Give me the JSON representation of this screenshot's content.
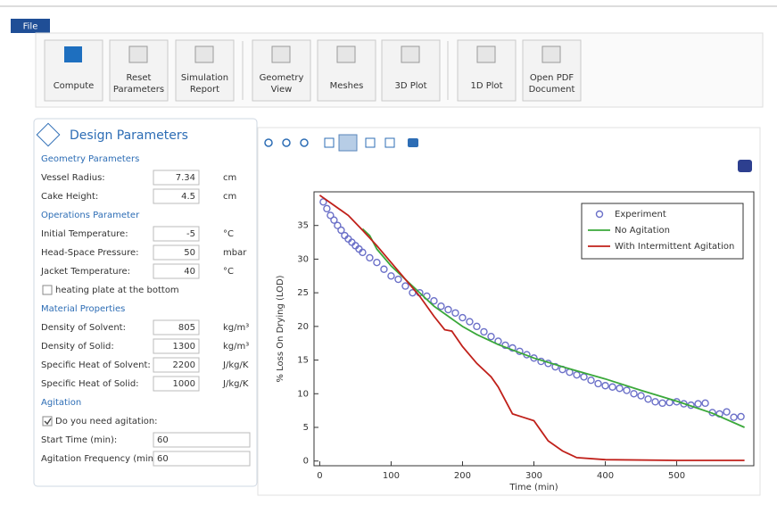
{
  "menu": {
    "file": "File"
  },
  "toolbar": {
    "buttons": [
      {
        "lines": [
          "Compute"
        ]
      },
      {
        "lines": [
          "Reset",
          "Parameters"
        ]
      },
      {
        "lines": [
          "Simulation",
          "Report"
        ]
      },
      {
        "lines": [
          "Geometry",
          "View"
        ]
      },
      {
        "lines": [
          "Meshes"
        ]
      },
      {
        "lines": [
          "3D Plot"
        ]
      },
      {
        "lines": [
          "1D Plot"
        ]
      },
      {
        "lines": [
          "Open PDF",
          "Document"
        ]
      }
    ]
  },
  "panel": {
    "title": "Design Parameters",
    "items": [
      {
        "kind": "heading",
        "text": "Geometry Parameters"
      },
      {
        "kind": "row",
        "label": "Vessel Radius:",
        "value": 7.34,
        "unit": "cm"
      },
      {
        "kind": "row",
        "label": "Cake Height:",
        "value": 4.5,
        "unit": "cm"
      },
      {
        "kind": "heading",
        "text": "Operations Parameter"
      },
      {
        "kind": "row",
        "label": "Initial Temperature:",
        "value": -5,
        "unit": "°C"
      },
      {
        "kind": "row",
        "label": "Head-Space Pressure:",
        "value": 50,
        "unit": "mbar"
      },
      {
        "kind": "row",
        "label": "Jacket Temperature:",
        "value": 40,
        "unit": "°C"
      },
      {
        "kind": "check",
        "label": "heating plate at the bottom",
        "checked": false
      },
      {
        "kind": "heading",
        "text": "Material Properties"
      },
      {
        "kind": "row",
        "label": "Density of Solvent:",
        "value": 805,
        "unit": "kg/m³"
      },
      {
        "kind": "row",
        "label": "Density of Solid:",
        "value": 1300,
        "unit": "kg/m³"
      },
      {
        "kind": "row",
        "label": "Specific Heat of Solvent:",
        "value": 2200,
        "unit": "J/kg/K"
      },
      {
        "kind": "row",
        "label": "Specific Heat of Solid:",
        "value": 1000,
        "unit": "J/kg/K"
      },
      {
        "kind": "heading",
        "text": "Agitation"
      },
      {
        "kind": "check",
        "label": "Do you need agitation:",
        "checked": true
      },
      {
        "kind": "wide",
        "label": "Start Time (min):",
        "value": 60
      },
      {
        "kind": "wide",
        "label": "Agitation Frequency (min):",
        "value": 60
      }
    ]
  },
  "chart_data": {
    "type": "line",
    "x_label": "Time (min)",
    "y_label": "% Loss On Drying (LOD)",
    "xlim": [
      -8,
      608
    ],
    "ylim": [
      -0.7,
      40
    ],
    "xticks": [
      0,
      100,
      200,
      300,
      400,
      500
    ],
    "yticks": [
      0,
      5,
      10,
      15,
      20,
      25,
      30,
      35
    ],
    "legend": "top-right",
    "series": [
      {
        "name": "Experiment",
        "color": "#6b70c8",
        "style": "markers",
        "x": [
          5,
          10,
          15,
          20,
          25,
          30,
          35,
          40,
          45,
          50,
          55,
          60,
          70,
          80,
          90,
          100,
          110,
          120,
          130,
          140,
          150,
          160,
          170,
          180,
          190,
          200,
          210,
          220,
          230,
          240,
          250,
          260,
          270,
          280,
          290,
          300,
          310,
          320,
          330,
          340,
          350,
          360,
          370,
          380,
          390,
          400,
          410,
          420,
          430,
          440,
          450,
          460,
          470,
          480,
          490,
          500,
          510,
          520,
          530,
          540,
          550,
          560,
          570,
          580,
          590
        ],
        "values": [
          38.5,
          37.5,
          36.5,
          35.8,
          35,
          34.3,
          33.5,
          33,
          32.5,
          32,
          31.5,
          31,
          30.2,
          29.5,
          28.5,
          27.5,
          27,
          26,
          25,
          25,
          24.5,
          23.8,
          23,
          22.5,
          22,
          21.3,
          20.7,
          20,
          19.2,
          18.5,
          17.8,
          17.2,
          16.8,
          16.3,
          15.8,
          15.3,
          14.8,
          14.5,
          14,
          13.6,
          13.2,
          12.8,
          12.5,
          12,
          11.5,
          11.2,
          11,
          10.8,
          10.5,
          10,
          9.7,
          9.2,
          8.8,
          8.6,
          8.7,
          8.8,
          8.5,
          8.3,
          8.5,
          8.6,
          7.2,
          7,
          7.3,
          6.5,
          6.6
        ]
      },
      {
        "name": "No Agitation",
        "color": "#3aa83a",
        "style": "line",
        "x": [
          60,
          70,
          80,
          100,
          120,
          140,
          160,
          180,
          200,
          220,
          250,
          300,
          350,
          400,
          450,
          500,
          550,
          595
        ],
        "values": [
          34.5,
          33.5,
          31.5,
          29,
          27,
          25,
          23,
          21.5,
          20,
          18.8,
          17.3,
          15.3,
          13.7,
          12.2,
          10.5,
          8.9,
          7.1,
          5
        ]
      },
      {
        "name": "With Intermittent Agitation",
        "color": "#c0201a",
        "style": "line",
        "x": [
          0,
          20,
          40,
          60,
          80,
          100,
          120,
          140,
          160,
          175,
          185,
          200,
          220,
          240,
          250,
          260,
          270,
          285,
          300,
          310,
          320,
          340,
          360,
          400,
          500,
          595
        ],
        "values": [
          39.5,
          38,
          36.5,
          34.3,
          32,
          29.5,
          27,
          24.5,
          21.5,
          19.5,
          19.3,
          17,
          14.5,
          12.5,
          11,
          9,
          7,
          6.5,
          6,
          4.5,
          3,
          1.5,
          0.5,
          0.2,
          0.1,
          0.1
        ]
      }
    ]
  }
}
